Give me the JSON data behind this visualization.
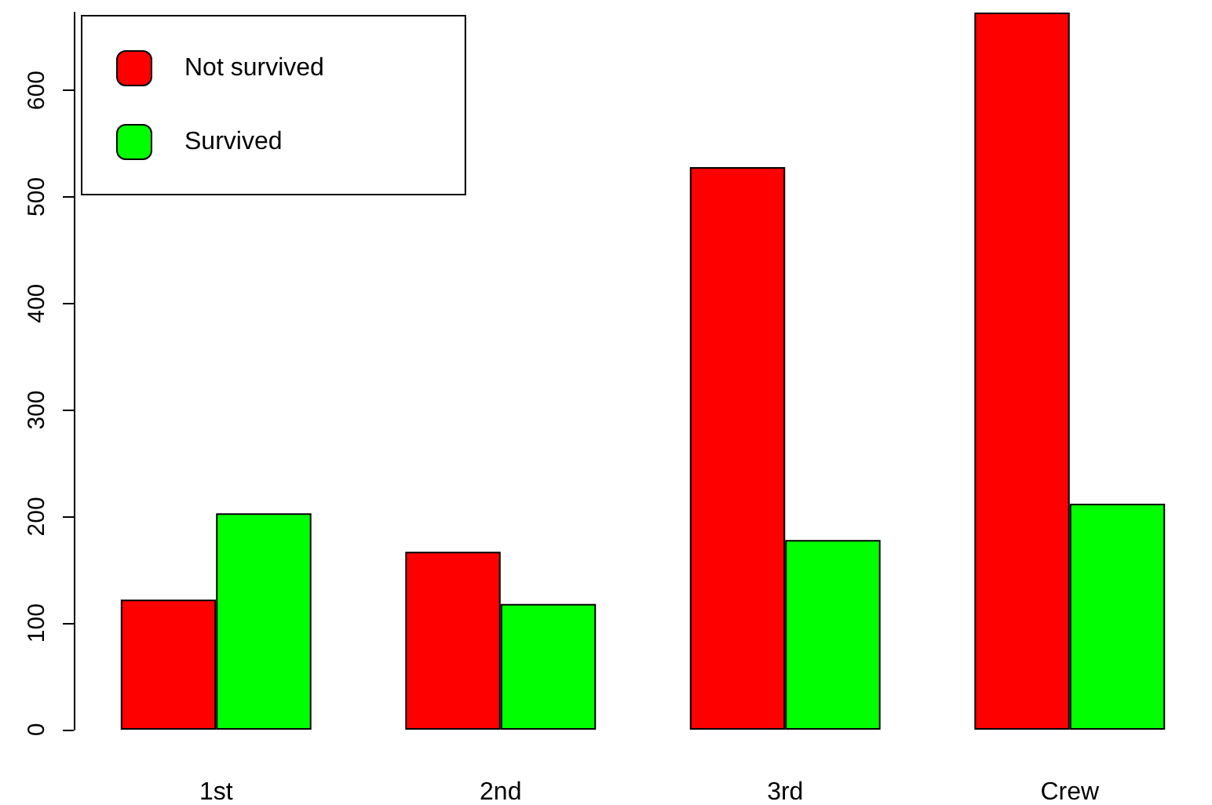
{
  "chart_data": {
    "type": "bar",
    "categories": [
      "1st",
      "2nd",
      "3rd",
      "Crew"
    ],
    "series": [
      {
        "name": "Not survived",
        "color": "#ff0000",
        "values": [
          122,
          167,
          528,
          673
        ]
      },
      {
        "name": "Survived",
        "color": "#00ff00",
        "values": [
          203,
          118,
          178,
          212
        ]
      }
    ],
    "ylim": [
      0,
      673
    ],
    "yticks": [
      0,
      100,
      200,
      300,
      400,
      500,
      600
    ],
    "grid": false,
    "legend": "top left"
  }
}
